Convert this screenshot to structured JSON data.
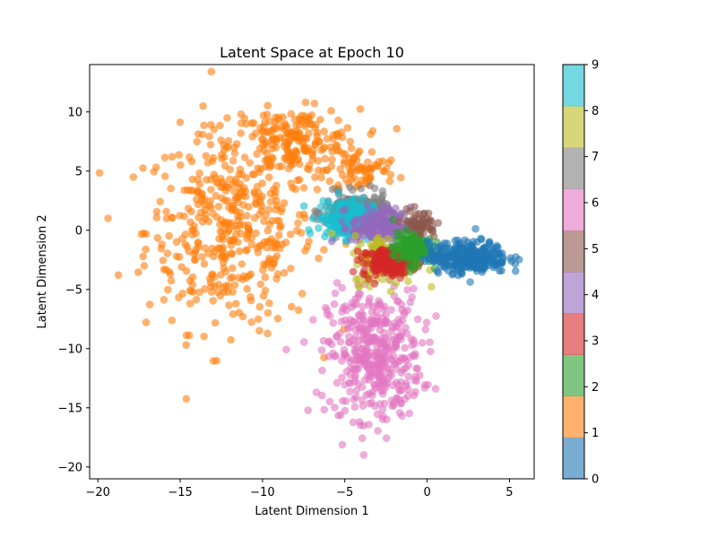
{
  "chart_data": {
    "type": "scatter",
    "title": "Latent Space at Epoch 10",
    "xlabel": "Latent Dimension 1",
    "ylabel": "Latent Dimension 2",
    "xlim": [
      -20.5,
      6.5
    ],
    "ylim": [
      -21,
      14
    ],
    "xticks": [
      -20,
      -15,
      -10,
      -5,
      0,
      5
    ],
    "yticks": [
      -20,
      -15,
      -10,
      -5,
      0,
      5,
      10
    ],
    "grid": false,
    "point_alpha": 0.6,
    "colorbar": {
      "range": [
        0,
        9
      ],
      "ticks": [
        0,
        1,
        2,
        3,
        4,
        5,
        6,
        7,
        8,
        9
      ],
      "colormap": "tab10"
    },
    "series": [
      {
        "label_value": 1,
        "color": "#ff7f0e",
        "point_count": 700,
        "regions": [
          {
            "center": [
              -12,
              0
            ],
            "spread": [
              3.4,
              5.6
            ],
            "weight": 0.62
          },
          {
            "center": [
              -8,
              7.5
            ],
            "spread": [
              2.6,
              1.8
            ],
            "weight": 0.28
          },
          {
            "center": [
              -4,
              5
            ],
            "spread": [
              1.5,
              1.2
            ],
            "weight": 0.1
          }
        ]
      },
      {
        "label_value": 6,
        "color": "#e377c2",
        "point_count": 420,
        "regions": [
          {
            "center": [
              -3.2,
              -10.5
            ],
            "spread": [
              1.9,
              3.6
            ],
            "weight": 1.0
          }
        ]
      },
      {
        "label_value": 7,
        "color": "#7f7f7f",
        "point_count": 260,
        "regions": [
          {
            "center": [
              -4.3,
              1.6
            ],
            "spread": [
              1.3,
              1.0
            ],
            "weight": 1.0
          }
        ]
      },
      {
        "label_value": 9,
        "color": "#17becf",
        "point_count": 170,
        "regions": [
          {
            "center": [
              -5.0,
              1.0
            ],
            "spread": [
              1.1,
              1.1
            ],
            "weight": 1.0
          }
        ]
      },
      {
        "label_value": 4,
        "color": "#9467bd",
        "point_count": 170,
        "regions": [
          {
            "center": [
              -2.8,
              0.3
            ],
            "spread": [
              1.2,
              1.1
            ],
            "weight": 1.0
          }
        ]
      },
      {
        "label_value": 8,
        "color": "#bcbd22",
        "point_count": 150,
        "regions": [
          {
            "center": [
              -2.5,
              -2.5
            ],
            "spread": [
              1.3,
              1.4
            ],
            "weight": 1.0
          }
        ]
      },
      {
        "label_value": 5,
        "color": "#8c564b",
        "point_count": 60,
        "regions": [
          {
            "center": [
              -0.5,
              0.5
            ],
            "spread": [
              0.7,
              0.8
            ],
            "weight": 1.0
          }
        ]
      },
      {
        "label_value": 3,
        "color": "#d62728",
        "point_count": 160,
        "regions": [
          {
            "center": [
              -2.4,
              -2.7
            ],
            "spread": [
              1.0,
              0.8
            ],
            "weight": 1.0
          }
        ]
      },
      {
        "label_value": 2,
        "color": "#2ca02c",
        "point_count": 150,
        "regions": [
          {
            "center": [
              -0.9,
              -1.5
            ],
            "spread": [
              0.8,
              0.9
            ],
            "weight": 1.0
          }
        ]
      },
      {
        "label_value": 0,
        "color": "#1f77b4",
        "point_count": 300,
        "regions": [
          {
            "center": [
              2.5,
              -2.3
            ],
            "spread": [
              1.6,
              0.9
            ],
            "weight": 1.0
          }
        ]
      }
    ]
  }
}
